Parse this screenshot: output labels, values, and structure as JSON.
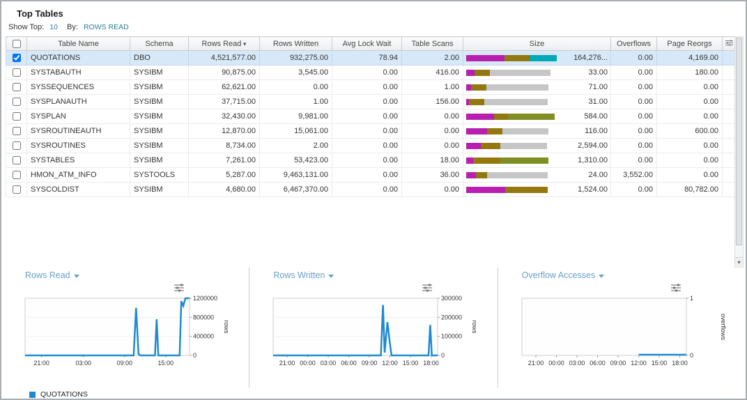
{
  "header": {
    "title": "Top Tables"
  },
  "controls": {
    "show_top_label": "Show Top:",
    "show_top_value": "10",
    "by_label": "By:",
    "by_value": "ROWS READ"
  },
  "table": {
    "columns": [
      "Table Name",
      "Schema",
      "Rows Read",
      "Rows Written",
      "Avg Lock Wait",
      "Table Scans",
      "Size",
      "Overflows",
      "Page Reorgs"
    ],
    "sort_column": "Rows Read",
    "sort_indicator": "▾",
    "rows": [
      {
        "checked": true,
        "selected": true,
        "table_name": "QUOTATIONS",
        "schema": "DBO",
        "rows_read": "4,521,577.00",
        "rows_written": "932,275.00",
        "avg_lock_wait": "78.94",
        "table_scans": "2.00",
        "size_value": "164,276...",
        "overflows": "0.00",
        "page_reorgs": "4,169.00",
        "size_bar": [
          {
            "color": "#b81fae",
            "pct": 42
          },
          {
            "color": "#92780e",
            "pct": 28
          },
          {
            "color": "#00a9b4",
            "pct": 30
          }
        ]
      },
      {
        "checked": false,
        "selected": false,
        "table_name": "SYSTABAUTH",
        "schema": "SYSIBM",
        "rows_read": "90,875.00",
        "rows_written": "3,545.00",
        "avg_lock_wait": "0.00",
        "table_scans": "416.00",
        "size_value": "33.00",
        "overflows": "0.00",
        "page_reorgs": "180.00",
        "size_bar": [
          {
            "color": "#b81fae",
            "pct": 9
          },
          {
            "color": "#92780e",
            "pct": 17
          },
          {
            "color": "#c6c6c6",
            "pct": 67
          }
        ]
      },
      {
        "checked": false,
        "selected": false,
        "table_name": "SYSSEQUENCES",
        "schema": "SYSIBM",
        "rows_read": "62,621.00",
        "rows_written": "0.00",
        "avg_lock_wait": "0.00",
        "table_scans": "1.00",
        "size_value": "71.00",
        "overflows": "0.00",
        "page_reorgs": "0.00",
        "size_bar": [
          {
            "color": "#b81fae",
            "pct": 5
          },
          {
            "color": "#92780e",
            "pct": 17
          },
          {
            "color": "#c6c6c6",
            "pct": 69
          }
        ]
      },
      {
        "checked": false,
        "selected": false,
        "table_name": "SYSPLANAUTH",
        "schema": "SYSIBM",
        "rows_read": "37,715.00",
        "rows_written": "1.00",
        "avg_lock_wait": "0.00",
        "table_scans": "156.00",
        "size_value": "31.00",
        "overflows": "0.00",
        "page_reorgs": "0.00",
        "size_bar": [
          {
            "color": "#b81fae",
            "pct": 3
          },
          {
            "color": "#92780e",
            "pct": 17
          },
          {
            "color": "#c6c6c6",
            "pct": 70
          }
        ]
      },
      {
        "checked": false,
        "selected": false,
        "table_name": "SYSPLAN",
        "schema": "SYSIBM",
        "rows_read": "32,430.00",
        "rows_written": "9,981.00",
        "avg_lock_wait": "0.00",
        "table_scans": "0.00",
        "size_value": "584.00",
        "overflows": "0.00",
        "page_reorgs": "0.00",
        "size_bar": [
          {
            "color": "#b81fae",
            "pct": 31
          },
          {
            "color": "#92780e",
            "pct": 15
          },
          {
            "color": "#7f8f23",
            "pct": 52
          }
        ]
      },
      {
        "checked": false,
        "selected": false,
        "table_name": "SYSROUTINEAUTH",
        "schema": "SYSIBM",
        "rows_read": "12,870.00",
        "rows_written": "15,061.00",
        "avg_lock_wait": "0.00",
        "table_scans": "0.00",
        "size_value": "116.00",
        "overflows": "0.00",
        "page_reorgs": "600.00",
        "size_bar": [
          {
            "color": "#b81fae",
            "pct": 23
          },
          {
            "color": "#92780e",
            "pct": 17
          },
          {
            "color": "#c6c6c6",
            "pct": 51
          }
        ]
      },
      {
        "checked": false,
        "selected": false,
        "table_name": "SYSROUTINES",
        "schema": "SYSIBM",
        "rows_read": "8,734.00",
        "rows_written": "2.00",
        "avg_lock_wait": "0.00",
        "table_scans": "0.00",
        "size_value": "2,594.00",
        "overflows": "0.00",
        "page_reorgs": "0.00",
        "size_bar": [
          {
            "color": "#b81fae",
            "pct": 16
          },
          {
            "color": "#92780e",
            "pct": 22
          },
          {
            "color": "#c6c6c6",
            "pct": 51
          }
        ]
      },
      {
        "checked": false,
        "selected": false,
        "table_name": "SYSTABLES",
        "schema": "SYSIBM",
        "rows_read": "7,261.00",
        "rows_written": "53,423.00",
        "avg_lock_wait": "0.00",
        "table_scans": "18.00",
        "size_value": "1,310.00",
        "overflows": "0.00",
        "page_reorgs": "0.00",
        "size_bar": [
          {
            "color": "#b81fae",
            "pct": 8
          },
          {
            "color": "#92780e",
            "pct": 30
          },
          {
            "color": "#7f8f23",
            "pct": 53
          }
        ]
      },
      {
        "checked": false,
        "selected": false,
        "table_name": "HMON_ATM_INFO",
        "schema": "SYSTOOLS",
        "rows_read": "5,287.00",
        "rows_written": "9,463,131.00",
        "avg_lock_wait": "0.00",
        "table_scans": "36.00",
        "size_value": "24.00",
        "overflows": "3,552.00",
        "page_reorgs": "0.00",
        "size_bar": [
          {
            "color": "#b81fae",
            "pct": 11
          },
          {
            "color": "#92780e",
            "pct": 12
          },
          {
            "color": "#c6c6c6",
            "pct": 67
          }
        ]
      },
      {
        "checked": false,
        "selected": false,
        "table_name": "SYSCOLDIST",
        "schema": "SYSIBM",
        "rows_read": "4,680.00",
        "rows_written": "6,467,370.00",
        "avg_lock_wait": "0.00",
        "table_scans": "0.00",
        "size_value": "1,524.00",
        "overflows": "0.00",
        "page_reorgs": "80,782.00",
        "size_bar": [
          {
            "color": "#b81fae",
            "pct": 43
          },
          {
            "color": "#92780e",
            "pct": 47
          }
        ]
      }
    ]
  },
  "chart_data": [
    {
      "type": "line",
      "title": "Rows Read",
      "ylabel": "rows",
      "ylim": [
        0,
        1200000
      ],
      "yticks": [
        0,
        400000,
        800000,
        1200000
      ],
      "xticks": [
        {
          "label": "21:00",
          "pos": 0.1
        },
        {
          "label": "03:00",
          "pos": 0.355
        },
        {
          "label": "09:00",
          "pos": 0.605
        },
        {
          "label": "15:00",
          "pos": 0.855
        }
      ],
      "legend_position": "bottom",
      "grid": false,
      "series": [
        {
          "name": "QUOTATIONS",
          "color": "#1f8ad0",
          "points": [
            [
              0,
              0
            ],
            [
              0.66,
              0
            ],
            [
              0.675,
              1000000
            ],
            [
              0.69,
              30000
            ],
            [
              0.7,
              0
            ],
            [
              0.79,
              0
            ],
            [
              0.8,
              760000
            ],
            [
              0.81,
              0
            ],
            [
              0.94,
              0
            ],
            [
              0.95,
              1140000
            ],
            [
              0.962,
              1040000
            ],
            [
              0.975,
              1200000
            ],
            [
              1,
              1200000
            ]
          ]
        }
      ]
    },
    {
      "type": "line",
      "title": "Rows Written",
      "ylabel": "rows",
      "ylim": [
        0,
        300000
      ],
      "yticks": [
        0,
        100000,
        200000,
        300000
      ],
      "xticks": [
        {
          "label": "21:00",
          "pos": 0.085
        },
        {
          "label": "00:00",
          "pos": 0.21
        },
        {
          "label": "03:00",
          "pos": 0.335
        },
        {
          "label": "06:00",
          "pos": 0.46
        },
        {
          "label": "09:00",
          "pos": 0.585
        },
        {
          "label": "12:00",
          "pos": 0.71
        },
        {
          "label": "15:00",
          "pos": 0.835
        },
        {
          "label": "18:00",
          "pos": 0.96
        }
      ],
      "legend_position": "bottom",
      "grid": false,
      "series": [
        {
          "name": "QUOTATIONS",
          "color": "#1f8ad0",
          "points": [
            [
              0,
              0
            ],
            [
              0.655,
              0
            ],
            [
              0.668,
              265000
            ],
            [
              0.678,
              15000
            ],
            [
              0.695,
              175000
            ],
            [
              0.71,
              60000
            ],
            [
              0.72,
              0
            ],
            [
              0.945,
              0
            ],
            [
              0.955,
              160000
            ],
            [
              0.965,
              0
            ],
            [
              1,
              0
            ]
          ]
        }
      ]
    },
    {
      "type": "line",
      "title": "Overflow Accesses",
      "ylabel": "overflows",
      "ylim": [
        0,
        1
      ],
      "yticks": [
        0,
        1
      ],
      "xticks": [
        {
          "label": "21:00",
          "pos": 0.085
        },
        {
          "label": "00:00",
          "pos": 0.21
        },
        {
          "label": "03:00",
          "pos": 0.335
        },
        {
          "label": "06:00",
          "pos": 0.46
        },
        {
          "label": "09:00",
          "pos": 0.585
        },
        {
          "label": "12:00",
          "pos": 0.71
        },
        {
          "label": "15:00",
          "pos": 0.835
        },
        {
          "label": "18:00",
          "pos": 0.96
        }
      ],
      "legend_position": "bottom",
      "grid": false,
      "series": [
        {
          "name": "QUOTATIONS",
          "color": "#1f8ad0",
          "points": [
            [
              0.71,
              0.012
            ],
            [
              1,
              0.012
            ]
          ]
        }
      ]
    }
  ],
  "legend": {
    "swatch_color": "#1f8ad0",
    "label": "QUOTATIONS"
  },
  "colors": {
    "accent_link": "#2c7f95",
    "selected_row": "#d7e9f8",
    "series_blue": "#1f8ad0",
    "chart_title": "#68a1cd",
    "bar_magenta": "#b81fae",
    "bar_olive": "#92780e",
    "bar_gray": "#c6c6c6",
    "bar_green": "#7f8f23",
    "bar_teal": "#00a9b4"
  }
}
